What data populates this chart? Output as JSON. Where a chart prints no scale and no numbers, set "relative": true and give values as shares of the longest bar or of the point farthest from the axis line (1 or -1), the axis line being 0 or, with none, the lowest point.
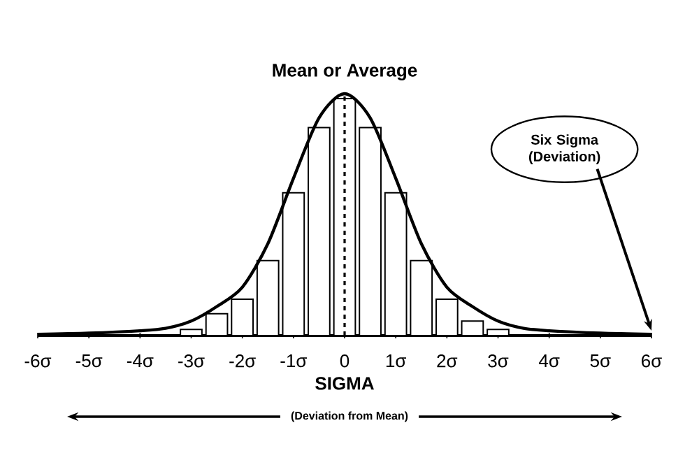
{
  "chart_data": {
    "type": "histogram",
    "relative": true,
    "xlabel": "SIGMA",
    "xlim": [
      -6,
      6
    ],
    "xticks": [
      {
        "value": -6,
        "label": "-6σ"
      },
      {
        "value": -5,
        "label": "-5σ"
      },
      {
        "value": -4,
        "label": "-4σ"
      },
      {
        "value": -3,
        "label": "-3σ"
      },
      {
        "value": -2,
        "label": "-2σ"
      },
      {
        "value": -1,
        "label": "-1σ"
      },
      0,
      {
        "value": 1,
        "label": "1σ"
      },
      {
        "value": 2,
        "label": "2σ"
      },
      {
        "value": 3,
        "label": "3σ"
      },
      {
        "value": 4,
        "label": "4σ"
      },
      {
        "value": 5,
        "label": "5σ"
      },
      {
        "value": 6,
        "label": "6σ"
      }
    ],
    "marker": "none",
    "series": [
      {
        "type": "histogram",
        "bins": [
          -3.25,
          -2.75,
          -2.25,
          -1.75,
          -1.25,
          -0.75,
          -0.25,
          0.25,
          0.75,
          1.25,
          1.75,
          2.25,
          2.75,
          3.25
        ],
        "values": [
          0.025,
          0.09,
          0.15,
          0.31,
          0.59,
          0.86,
          0.98,
          0.86,
          0.59,
          0.31,
          0.15,
          0.06,
          0.025
        ],
        "color": "#ffffff"
      },
      {
        "type": "line",
        "color": "#000000",
        "x": [
          -6,
          -5,
          -4,
          -3.5,
          -3,
          -2.5,
          -2,
          -1.5,
          -1,
          -0.5,
          0,
          0.5,
          1,
          1.5,
          2,
          2.5,
          3,
          3.5,
          4,
          5,
          6
        ],
        "values": [
          0.005,
          0.01,
          0.02,
          0.03,
          0.06,
          0.12,
          0.2,
          0.38,
          0.65,
          0.9,
          1.0,
          0.9,
          0.65,
          0.38,
          0.2,
          0.12,
          0.06,
          0.03,
          0.02,
          0.01,
          0.005
        ]
      }
    ],
    "ref_lines": [
      {
        "axis": "x",
        "value": 0,
        "label": "Mean or Average",
        "line_style": "dashed"
      }
    ],
    "annotations": [
      {
        "text": "Six Sigma (Deviation)",
        "x": 6,
        "y": 0
      },
      "(Deviation from Mean)"
    ]
  }
}
